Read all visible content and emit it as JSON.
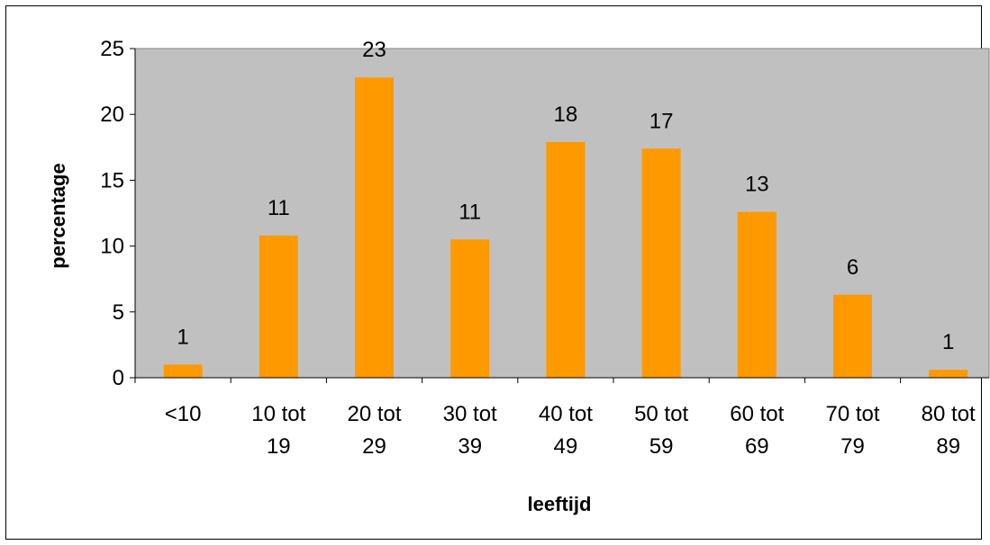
{
  "chart_data": {
    "type": "bar",
    "categories": [
      [
        "<10"
      ],
      [
        "10 tot",
        "19"
      ],
      [
        "20 tot",
        "29"
      ],
      [
        "30 tot",
        "39"
      ],
      [
        "40 tot",
        "49"
      ],
      [
        "50 tot",
        "59"
      ],
      [
        "60 tot",
        "69"
      ],
      [
        "70 tot",
        "79"
      ],
      [
        "80 tot",
        "89"
      ]
    ],
    "values": [
      1.0,
      10.8,
      22.8,
      10.5,
      17.9,
      17.4,
      12.6,
      6.3,
      0.6
    ],
    "data_labels": [
      "1",
      "11",
      "23",
      "11",
      "18",
      "17",
      "13",
      "6",
      "1"
    ],
    "xlabel": "leeftijd",
    "ylabel": "percentage",
    "ylim": [
      0,
      25
    ],
    "yticks": [
      "0",
      "5",
      "10",
      "15",
      "20",
      "25"
    ],
    "grid": false,
    "legend": "none",
    "colors": {
      "bar": "#FF9900",
      "plot_background": "#C0C0C0"
    }
  }
}
